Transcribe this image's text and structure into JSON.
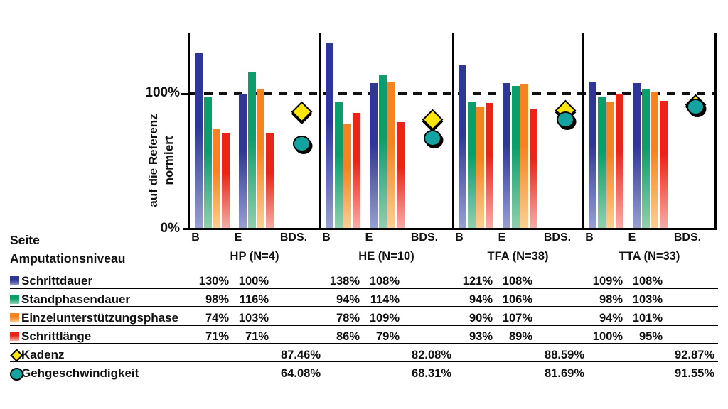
{
  "chart_data": {
    "type": "bar",
    "ylabel_line1": "auf die Referenz",
    "ylabel_line2": "normiert",
    "ytick_100": "100%",
    "ytick_0": "0%",
    "side_header": "Seite",
    "level_header": "Amputationsniveau",
    "side_labels": [
      "B",
      "E",
      "BDS."
    ],
    "ylim": [
      0,
      145
    ],
    "reference_line_pct": 100,
    "grid": "reference-dashed-line-only",
    "legend_position": "table-left-below",
    "groups": [
      {
        "label": "HP (N=4)"
      },
      {
        "label": "HE (N=10)"
      },
      {
        "label": "TFA (N=38)"
      },
      {
        "label": "TTA (N=33)"
      }
    ],
    "bar_series": [
      {
        "name": "Schrittdauer",
        "color": "#2F3693",
        "color_light": "#98A1D0",
        "B": [
          130,
          138,
          121,
          109
        ],
        "E": [
          100,
          108,
          108,
          108
        ]
      },
      {
        "name": "Standphasendauer",
        "color": "#0A9E6B",
        "color_light": "#92D0AE",
        "B": [
          98,
          94,
          94,
          98
        ],
        "E": [
          116,
          114,
          106,
          103
        ]
      },
      {
        "name": "Einzelunterstützungsphase",
        "color": "#F5831F",
        "color_light": "#FBD094",
        "B": [
          74,
          78,
          90,
          94
        ],
        "E": [
          103,
          109,
          107,
          101
        ]
      },
      {
        "name": "Schrittlänge",
        "color": "#EA2419",
        "color_light": "#F7AEA8",
        "B": [
          71,
          86,
          93,
          100
        ],
        "E": [
          71,
          79,
          89,
          95
        ]
      }
    ],
    "marker_series": [
      {
        "name": "Kadenz",
        "shape": "diamond",
        "color": "#FFE60A",
        "BDS": [
          87.46,
          82.08,
          88.59,
          92.87
        ]
      },
      {
        "name": "Gehgeschwindigkeit",
        "shape": "circle",
        "color": "#14A3A1",
        "BDS": [
          64.08,
          68.31,
          81.69,
          91.55
        ]
      }
    ]
  }
}
